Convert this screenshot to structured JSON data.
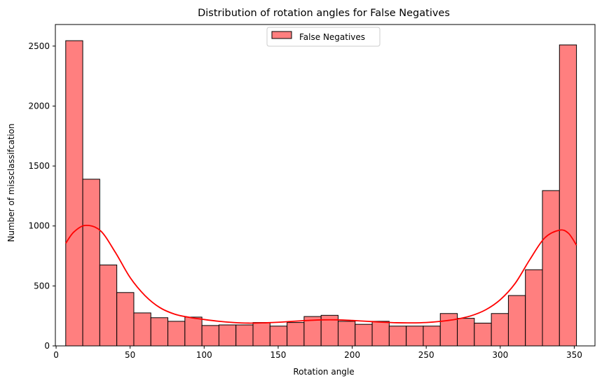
{
  "chart_data": {
    "type": "bar",
    "title": "Distribution of rotation angles for False Negatives",
    "xlabel": "Rotation angle",
    "ylabel": "Number of missclassifcation",
    "xlim": [
      -0.5,
      364
    ],
    "ylim": [
      0,
      2680
    ],
    "xticks": [
      0,
      50,
      100,
      150,
      200,
      250,
      300,
      350
    ],
    "yticks": [
      0,
      500,
      1000,
      1500,
      2000,
      2500
    ],
    "grid": false,
    "legend": {
      "placement": "top-center",
      "entries": [
        "False Negatives"
      ]
    },
    "series": [
      {
        "name": "False Negatives",
        "color": "#ff7f7f",
        "edge_color": "#000000",
        "bin_edges": [
          6.5,
          18.0,
          29.5,
          41.0,
          52.5,
          64.0,
          75.5,
          87.0,
          98.5,
          110.0,
          121.5,
          133.0,
          144.5,
          156.0,
          167.5,
          179.0,
          190.5,
          202.0,
          213.5,
          225.0,
          236.5,
          248.0,
          259.5,
          271.0,
          282.5,
          294.0,
          305.5,
          317.0,
          328.5,
          340.0,
          351.5
        ],
        "counts": [
          2545,
          1390,
          675,
          445,
          275,
          235,
          205,
          240,
          170,
          175,
          175,
          195,
          165,
          195,
          245,
          255,
          205,
          180,
          205,
          165,
          165,
          165,
          270,
          230,
          190,
          270,
          420,
          635,
          1295,
          2510
        ]
      }
    ],
    "kde": {
      "color": "#ff0000",
      "x": [
        6.5,
        12,
        20,
        30,
        40,
        50,
        60,
        70,
        80,
        90,
        100,
        110,
        120,
        130,
        140,
        150,
        160,
        170,
        180,
        190,
        200,
        210,
        220,
        230,
        240,
        250,
        260,
        270,
        280,
        290,
        300,
        310,
        320,
        330,
        340,
        346,
        351.5
      ],
      "y": [
        855,
        950,
        1005,
        960,
        780,
        570,
        420,
        320,
        265,
        238,
        220,
        205,
        195,
        190,
        192,
        197,
        205,
        212,
        217,
        217,
        212,
        205,
        198,
        193,
        192,
        195,
        205,
        222,
        250,
        300,
        385,
        520,
        720,
        900,
        965,
        940,
        840
      ]
    }
  }
}
